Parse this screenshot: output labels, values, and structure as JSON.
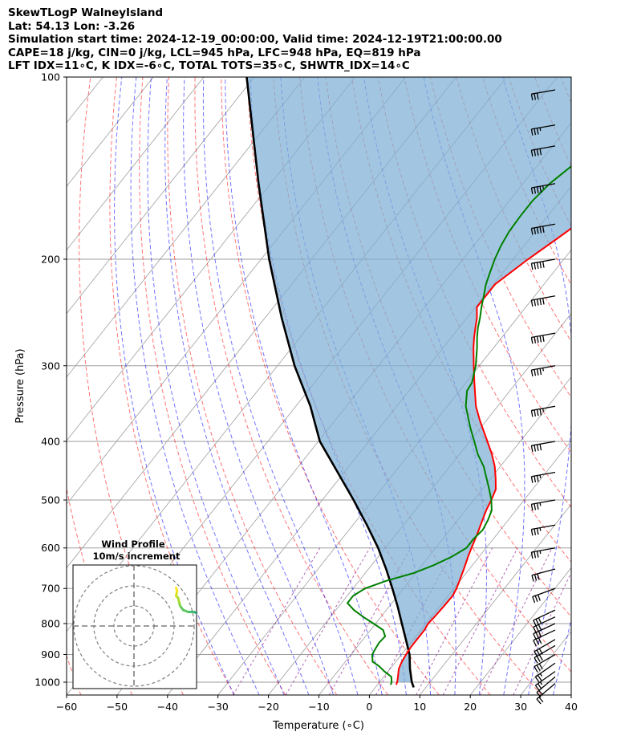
{
  "header": {
    "line1": "SkewTLogP WalneyIsland",
    "line2": "Lat: 54.13   Lon: -3.26",
    "line3": "Simulation start time: 2024-12-19_00:00:00, Valid time: 2024-12-19T21:00:00.00",
    "line4": "CAPE=18 j/kg, CIN=0 j/kg, LCL=945 hPa, LFC=948 hPa, EQ=819 hPa",
    "line5": "LFT IDX=11∘C, K IDX=-6∘C, TOTAL TOTS=35∘C, SHWTR_IDX=14∘C"
  },
  "chart_data": {
    "type": "line",
    "title": "",
    "xlabel": "Temperature (∘C)",
    "ylabel": "Pressure (hPa)",
    "xlim": [
      -60,
      40
    ],
    "ylim": [
      1050,
      100
    ],
    "y_scale": "log",
    "x_ticks": [
      -60,
      -50,
      -40,
      -30,
      -20,
      -10,
      0,
      10,
      20,
      30,
      40
    ],
    "x_tick_labels": [
      "−60",
      "−50",
      "−40",
      "−30",
      "−20",
      "−10",
      "0",
      "10",
      "20",
      "30",
      "40"
    ],
    "y_ticks": [
      100,
      200,
      300,
      400,
      500,
      600,
      700,
      800,
      900,
      1000
    ],
    "y_tick_labels": [
      "100",
      "200",
      "300",
      "400",
      "500",
      "600",
      "700",
      "800",
      "900",
      "1000"
    ],
    "grid": true,
    "colors": {
      "temperature": "#ff0000",
      "dewpoint": "#008000",
      "parcel": "#000000",
      "cape_fill": "#7eb0d5",
      "dry_adiabat": "#ff0000",
      "moist_adiabat": "#0000ff",
      "mixing_ratio": "#800080",
      "isotherm_grid": "#9e9e9e"
    },
    "series": [
      {
        "role": "temperature",
        "pressure": [
          1010,
          1000,
          980,
          950,
          925,
          900,
          875,
          850,
          820,
          800,
          780,
          750,
          720,
          700,
          680,
          650,
          620,
          600,
          570,
          550,
          520,
          500,
          480,
          460,
          440,
          420,
          400,
          370,
          350,
          320,
          300,
          280,
          270,
          260,
          250,
          240,
          220,
          200,
          185,
          165,
          150,
          140,
          130,
          120,
          110,
          100
        ],
        "temperature": [
          3.7,
          3.5,
          2.8,
          1.7,
          1.2,
          0.9,
          0.7,
          0.7,
          0.7,
          0.4,
          0.6,
          0.8,
          0.9,
          0.5,
          -0.1,
          -1.1,
          -2.2,
          -2.9,
          -3.9,
          -4.7,
          -5.9,
          -6.5,
          -7.3,
          -9.1,
          -11.1,
          -13.6,
          -16.5,
          -21.2,
          -24.3,
          -28.3,
          -31.1,
          -34.0,
          -35.4,
          -36.7,
          -38.0,
          -39.7,
          -39.7,
          -37.1,
          -34.6,
          -31.1,
          -28.6,
          -27.0,
          -25.3,
          -24.2,
          -23.4,
          -22.9
        ]
      },
      {
        "role": "dewpoint",
        "pressure": [
          1010,
          1000,
          980,
          960,
          940,
          925,
          900,
          880,
          860,
          840,
          820,
          800,
          780,
          760,
          740,
          720,
          700,
          680,
          660,
          640,
          620,
          600,
          580,
          560,
          540,
          520,
          500,
          480,
          460,
          440,
          420,
          400,
          380,
          350,
          330,
          320,
          300,
          280,
          270,
          260,
          250,
          240,
          230,
          220,
          210,
          200,
          190,
          180,
          170,
          160,
          150,
          140,
          130,
          120,
          110,
          100
        ],
        "dewpoint": [
          2.6,
          2.4,
          1.5,
          -0.7,
          -2.7,
          -4.6,
          -5.8,
          -6.1,
          -6.3,
          -6.1,
          -7.5,
          -10.4,
          -13.5,
          -16.4,
          -18.8,
          -18.8,
          -17.6,
          -14.6,
          -10.4,
          -7.6,
          -5.4,
          -3.9,
          -3.9,
          -3.5,
          -4.0,
          -4.8,
          -6.5,
          -8.6,
          -10.9,
          -13.3,
          -16.4,
          -19.1,
          -22.0,
          -26.3,
          -28.5,
          -28.8,
          -30.7,
          -33.3,
          -34.8,
          -36.2,
          -37.4,
          -38.8,
          -40.1,
          -41.5,
          -42.6,
          -43.7,
          -44.6,
          -45.2,
          -45.4,
          -45.4,
          -44.7,
          -43.1,
          -41.6,
          -39.6,
          -37.8,
          -37.4
        ]
      },
      {
        "role": "parcel",
        "pressure": [
          1020,
          1000,
          950,
          900,
          850,
          800,
          750,
          700,
          650,
          600,
          550,
          500,
          450,
          400,
          350,
          300,
          250,
          200,
          150,
          100
        ],
        "temperature": [
          7.6,
          6.4,
          3.9,
          1.6,
          -1.5,
          -4.8,
          -8.3,
          -12.2,
          -16.5,
          -21.4,
          -27.2,
          -33.8,
          -41.3,
          -49.7,
          -57.1,
          -66.6,
          -76.7,
          -88.4,
          -102.4,
          -121.5
        ]
      }
    ],
    "cape_region": {
      "pressure_range": [
        1000,
        100
      ],
      "note_color": "#7eb0d5"
    },
    "wind_barbs": {
      "pressure": [
        1005,
        980,
        960,
        930,
        900,
        870,
        850,
        820,
        800,
        780,
        760,
        700,
        650,
        600,
        550,
        500,
        450,
        400,
        350,
        300,
        265,
        230,
        200,
        175,
        150,
        130,
        120,
        105
      ],
      "speed_kt": [
        20,
        20,
        25,
        25,
        30,
        30,
        30,
        30,
        30,
        30,
        30,
        30,
        30,
        35,
        35,
        35,
        35,
        40,
        45,
        45,
        50,
        50,
        50,
        50,
        45,
        40,
        35,
        30
      ],
      "direction_deg": [
        230,
        230,
        235,
        235,
        240,
        240,
        240,
        245,
        245,
        245,
        245,
        250,
        255,
        260,
        260,
        260,
        260,
        260,
        260,
        260,
        260,
        260,
        260,
        260,
        260,
        260,
        260,
        260
      ]
    },
    "hodograph": {
      "title": "Wind Profile",
      "subtitle": "10m/s increment",
      "rings_ms": [
        10,
        20,
        30
      ],
      "u_ms": [
        38.0,
        36.5,
        35.0,
        33.5,
        32.5,
        32.0,
        32.5,
        33.5,
        34.0,
        33.5,
        32.0,
        30.0,
        27.0,
        24.5,
        23.0,
        22.5,
        22.0,
        21.0,
        21.5,
        21.0
      ],
      "v_ms": [
        -29.0,
        -28.0,
        -26.0,
        -24.0,
        -20.0,
        -16.0,
        -12.0,
        -8.0,
        -3.0,
        3.0,
        6.0,
        7.0,
        7.0,
        8.0,
        10.0,
        12.0,
        14.0,
        15.0,
        17.5,
        19.0
      ]
    }
  }
}
